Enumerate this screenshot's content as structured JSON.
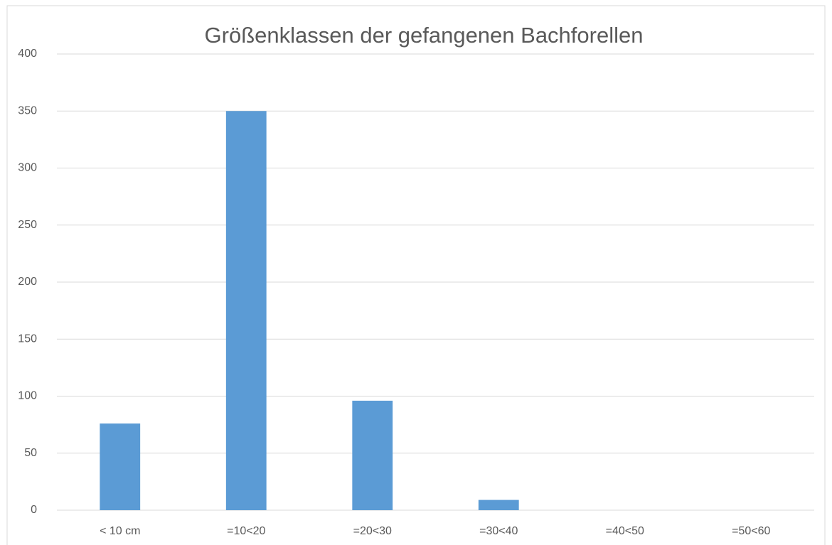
{
  "chart_data": {
    "type": "bar",
    "title": "Größenklassen der gefangenen Bachforellen",
    "categories": [
      "< 10 cm",
      "=10<20",
      "=20<30",
      "=30<40",
      "=40<50",
      "=50<60"
    ],
    "values": [
      76,
      350,
      96,
      9,
      0,
      0
    ],
    "color": "#5b9bd5",
    "ylim": [
      0,
      400
    ],
    "yticks": [
      0,
      50,
      100,
      150,
      200,
      250,
      300,
      350,
      400
    ],
    "grid": true
  }
}
